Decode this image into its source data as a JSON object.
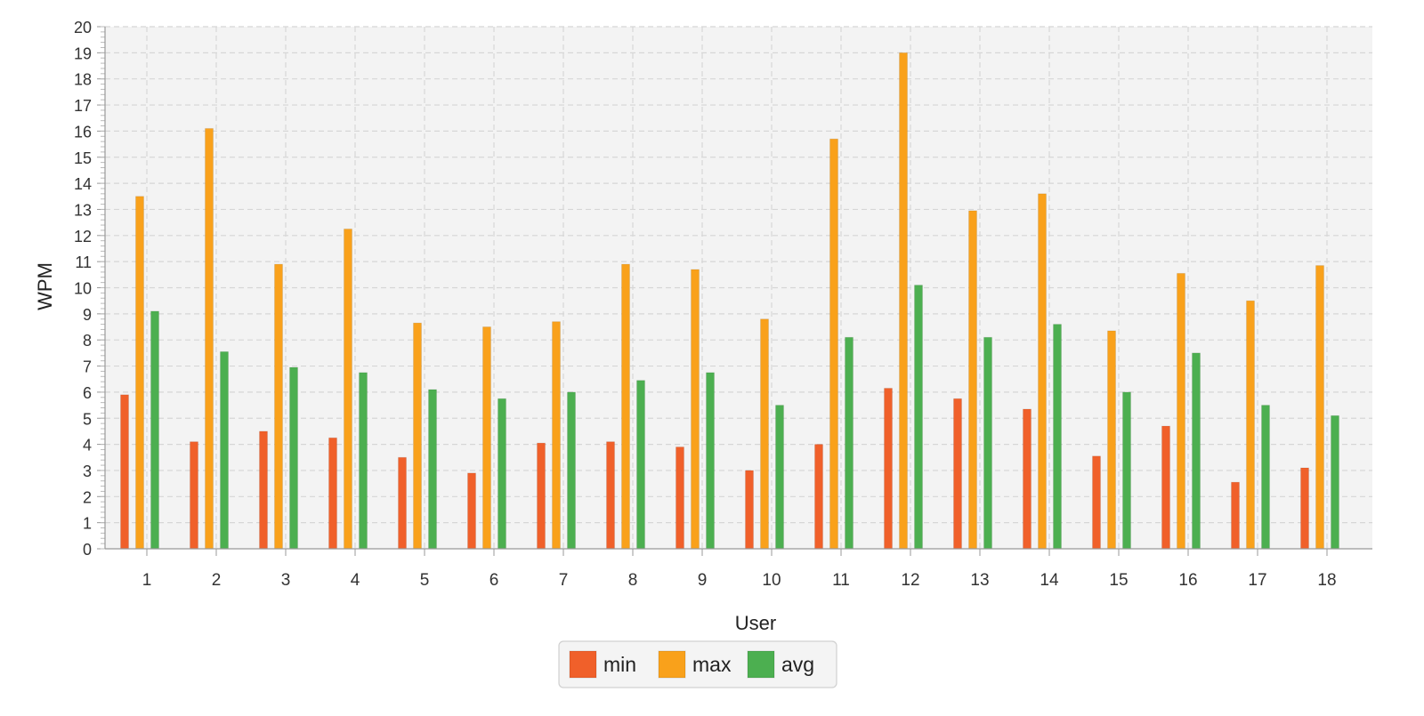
{
  "chart_data": {
    "type": "bar",
    "xlabel": "User",
    "ylabel": "WPM",
    "ylim": [
      0,
      20
    ],
    "yticks": [
      0,
      1,
      2,
      3,
      4,
      5,
      6,
      7,
      8,
      9,
      10,
      11,
      12,
      13,
      14,
      15,
      16,
      17,
      18,
      19,
      20
    ],
    "grid": true,
    "legend_position": "bottom-center",
    "categories": [
      "1",
      "2",
      "3",
      "4",
      "5",
      "6",
      "7",
      "8",
      "9",
      "10",
      "11",
      "12",
      "13",
      "14",
      "15",
      "16",
      "17",
      "18"
    ],
    "series": [
      {
        "name": "min",
        "color": "#f0602a",
        "values": [
          5.9,
          4.1,
          4.5,
          4.25,
          3.5,
          2.9,
          4.05,
          4.1,
          3.9,
          3.0,
          4.0,
          6.15,
          5.75,
          5.35,
          3.55,
          4.7,
          2.55,
          3.1
        ]
      },
      {
        "name": "max",
        "color": "#f9a11b",
        "values": [
          13.5,
          16.1,
          10.9,
          12.25,
          8.65,
          8.5,
          8.7,
          10.9,
          10.7,
          8.8,
          15.7,
          19.0,
          12.95,
          13.6,
          8.35,
          10.55,
          9.5,
          10.85
        ]
      },
      {
        "name": "avg",
        "color": "#4caf50",
        "values": [
          9.1,
          7.55,
          6.95,
          6.75,
          6.1,
          5.75,
          6.0,
          6.45,
          6.75,
          5.5,
          8.1,
          10.1,
          8.1,
          8.6,
          6.0,
          7.5,
          5.5,
          5.1
        ]
      }
    ]
  }
}
